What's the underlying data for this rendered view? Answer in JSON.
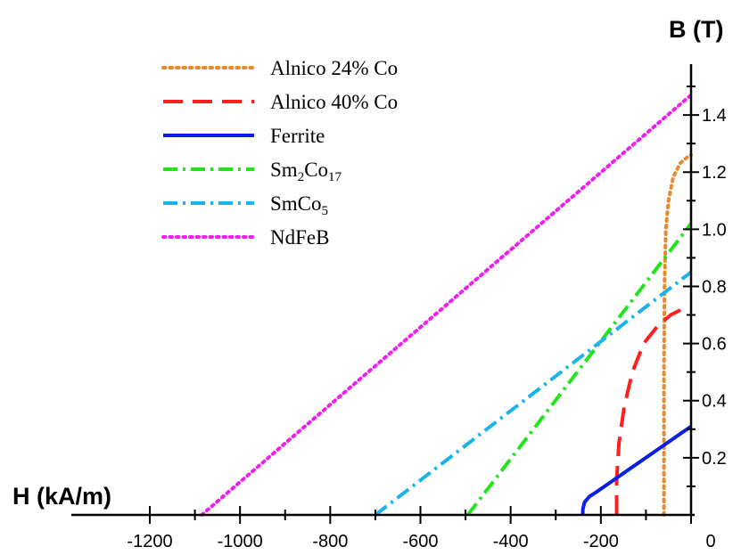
{
  "chart_data": {
    "type": "line",
    "xlabel": "H (kA/m)",
    "ylabel": "B (T)",
    "xlim": [
      -1200,
      0
    ],
    "ylim": [
      0,
      1.5
    ],
    "x_ticks": [
      -1200,
      -1000,
      -800,
      -600,
      -400,
      -200,
      0
    ],
    "x_tick_labels": [
      "-1200",
      "-1000",
      "-800",
      "-600",
      "-400",
      "-200",
      "0"
    ],
    "y_ticks": [
      0.2,
      0.4,
      0.6,
      0.8,
      1.0,
      1.2,
      1.4
    ],
    "y_tick_labels": [
      "0.2",
      "0.4",
      "0.6",
      "0.8",
      "1.0",
      "1.2",
      "1.4"
    ],
    "grid": false,
    "legend_position": "top-left",
    "series": [
      {
        "name": "Alnico 24% Co",
        "legend_parts": [
          [
            "Alnico 24%",
            ""
          ],
          [
            " Co",
            ""
          ]
        ],
        "color": "#e88a2e",
        "style": "dotted",
        "points": [
          [
            -60,
            0
          ],
          [
            -60,
            0.5
          ],
          [
            -59,
            0.8
          ],
          [
            -56,
            1.0
          ],
          [
            -50,
            1.1
          ],
          [
            -40,
            1.18
          ],
          [
            -25,
            1.23
          ],
          [
            -10,
            1.25
          ],
          [
            0,
            1.26
          ]
        ]
      },
      {
        "name": "Alnico 40% Co",
        "legend_parts": [
          [
            "Alnico 40%",
            ""
          ],
          [
            " Co",
            ""
          ]
        ],
        "color": "#ff1f1f",
        "style": "dashed",
        "points": [
          [
            -165,
            0
          ],
          [
            -165,
            0.12
          ],
          [
            -160,
            0.25
          ],
          [
            -148,
            0.38
          ],
          [
            -130,
            0.5
          ],
          [
            -105,
            0.6
          ],
          [
            -75,
            0.66
          ],
          [
            -45,
            0.7
          ],
          [
            -20,
            0.72
          ],
          [
            0,
            0.72
          ]
        ]
      },
      {
        "name": "Ferrite",
        "legend_parts": [
          [
            "Ferrite",
            ""
          ]
        ],
        "color": "#0a1ee6",
        "style": "solid",
        "points": [
          [
            -240,
            0
          ],
          [
            -240,
            0.02
          ],
          [
            -236,
            0.045
          ],
          [
            -225,
            0.065
          ],
          [
            -210,
            0.08
          ],
          [
            0,
            0.31
          ]
        ]
      },
      {
        "name": "Sm2Co17",
        "legend_parts": [
          [
            "Sm",
            ""
          ],
          [
            "2",
            "sub"
          ],
          [
            "Co",
            ""
          ],
          [
            "17",
            "sub"
          ]
        ],
        "color": "#22e41a",
        "style": "dashdot",
        "points": [
          [
            -495,
            0
          ],
          [
            0,
            1.02
          ]
        ]
      },
      {
        "name": "SmCo5",
        "legend_parts": [
          [
            "SmCo",
            ""
          ],
          [
            "5",
            "sub"
          ]
        ],
        "color": "#1ab4ea",
        "style": "dashdot",
        "points": [
          [
            -700,
            0
          ],
          [
            0,
            0.85
          ]
        ]
      },
      {
        "name": "NdFeB",
        "legend_parts": [
          [
            "NdFeB",
            ""
          ]
        ],
        "color": "#f01ef0",
        "style": "dotted",
        "points": [
          [
            -1085,
            0
          ],
          [
            0,
            1.47
          ]
        ]
      }
    ]
  }
}
